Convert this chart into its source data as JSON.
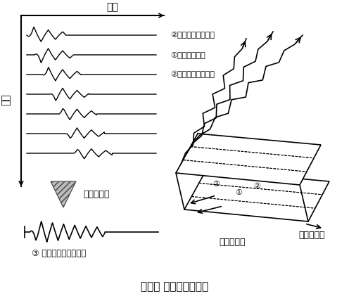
{
  "title": "図－１ 地震波の作り方",
  "time_label": "時間",
  "distance_label": "距離",
  "wave_labels": [
    "②震源の隣の地震波",
    "①震源の地震波",
    "②震源の隣の地震波"
  ],
  "superposition_label": "重ね合わせ",
  "result_label": "③ 大地震の地震動波形",
  "fault_label": "断層モデル",
  "rupture_label": "破壊の進行",
  "bg_color": "#ffffff",
  "line_color": "#000000"
}
